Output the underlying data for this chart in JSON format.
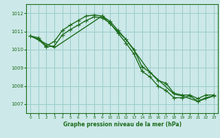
{
  "background_color": "#cce8e8",
  "grid_color": "#99cccc",
  "line_color": "#1a6b1a",
  "xlabel": "Graphe pression niveau de la mer (hPa)",
  "ylim": [
    1006.5,
    1012.5
  ],
  "xlim": [
    -0.5,
    23.5
  ],
  "yticks": [
    1007,
    1008,
    1009,
    1010,
    1011,
    1012
  ],
  "xticks": [
    0,
    1,
    2,
    3,
    4,
    5,
    6,
    7,
    8,
    9,
    10,
    11,
    12,
    13,
    14,
    15,
    16,
    17,
    18,
    19,
    20,
    21,
    22,
    23
  ],
  "series1_x": [
    0,
    1,
    2,
    3,
    4,
    5,
    6,
    7,
    8,
    9,
    10,
    11,
    12,
    13,
    14,
    15,
    16,
    17,
    18,
    19,
    20,
    21,
    22,
    23
  ],
  "series1_y": [
    1010.75,
    1010.65,
    1010.2,
    1010.45,
    1011.05,
    1011.35,
    1011.6,
    1011.85,
    1011.9,
    1011.85,
    1011.55,
    1011.05,
    1010.55,
    1010.0,
    1009.05,
    1008.75,
    1008.3,
    1008.15,
    1007.6,
    1007.5,
    1007.5,
    1007.3,
    1007.5,
    1007.5
  ],
  "series2_x": [
    0,
    1,
    2,
    3,
    4,
    5,
    6,
    7,
    8,
    9,
    10,
    11,
    12,
    13,
    14,
    15,
    16,
    17,
    18,
    19,
    20,
    21,
    22,
    23
  ],
  "series2_y": [
    1010.75,
    1010.55,
    1010.15,
    1010.2,
    1010.8,
    1011.1,
    1011.35,
    1011.6,
    1011.8,
    1011.75,
    1011.45,
    1010.9,
    1010.35,
    1009.75,
    1008.8,
    1008.5,
    1008.0,
    1007.75,
    1007.35,
    1007.35,
    1007.45,
    1007.15,
    1007.35,
    1007.45
  ],
  "series3_x": [
    0,
    3,
    9,
    12,
    15,
    18,
    19,
    21,
    22,
    23
  ],
  "series3_y": [
    1010.75,
    1010.1,
    1011.85,
    1010.55,
    1008.75,
    1007.55,
    1007.45,
    1007.15,
    1007.3,
    1007.45
  ]
}
